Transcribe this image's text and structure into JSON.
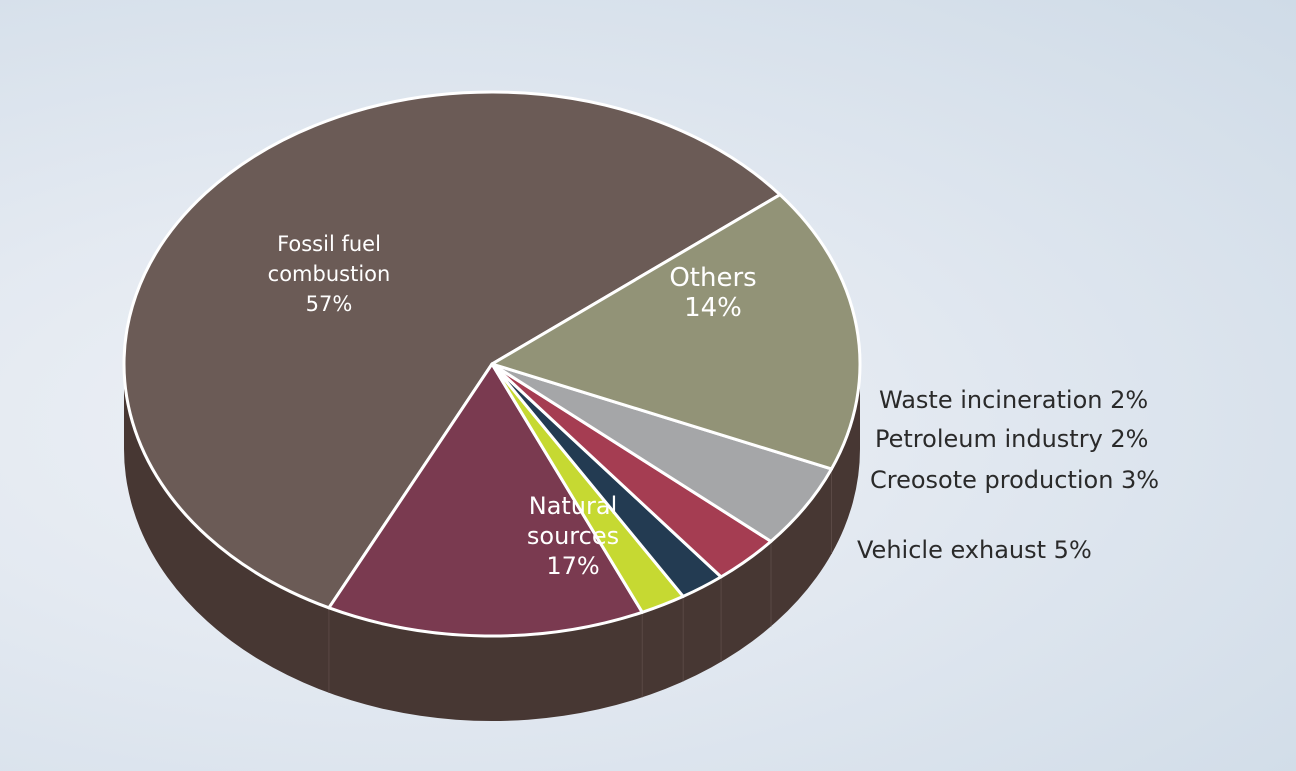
{
  "chart_data": {
    "type": "pie",
    "title": "",
    "slices": [
      {
        "label": "Fossil fuel combustion",
        "value": 57,
        "value_label": "57%",
        "color": "#6b5b56",
        "label_lines": [
          "Fossil fuel",
          "combustion",
          "57%"
        ]
      },
      {
        "label": "Others",
        "value": 14,
        "value_label": "14%",
        "color": "#7a3a50",
        "label_lines": [
          "Others",
          "14%"
        ]
      },
      {
        "label": "Waste incineration",
        "value": 2,
        "value_label": "2%",
        "color": "#c6d932",
        "label_lines": [
          "Waste incineration 2%"
        ]
      },
      {
        "label": "Petroleum industry",
        "value": 2,
        "value_label": "2%",
        "color": "#233b52",
        "label_lines": [
          "Petroleum industry 2%"
        ]
      },
      {
        "label": "Creosote production",
        "value": 3,
        "value_label": "3%",
        "color": "#a53d52",
        "label_lines": [
          "Creosote production 3%"
        ]
      },
      {
        "label": "Vehicle exhaust",
        "value": 5,
        "value_label": "5%",
        "color": "#a5a6a8",
        "label_lines": [
          "Vehicle exhaust 5%"
        ]
      },
      {
        "label": "Natural sources",
        "value": 17,
        "value_label": "17%",
        "color": "#929377",
        "label_lines": [
          "Natural",
          "sources",
          "17%"
        ]
      }
    ],
    "side_color": "#473733",
    "edge_color": "#ffffff",
    "legend": "none"
  }
}
